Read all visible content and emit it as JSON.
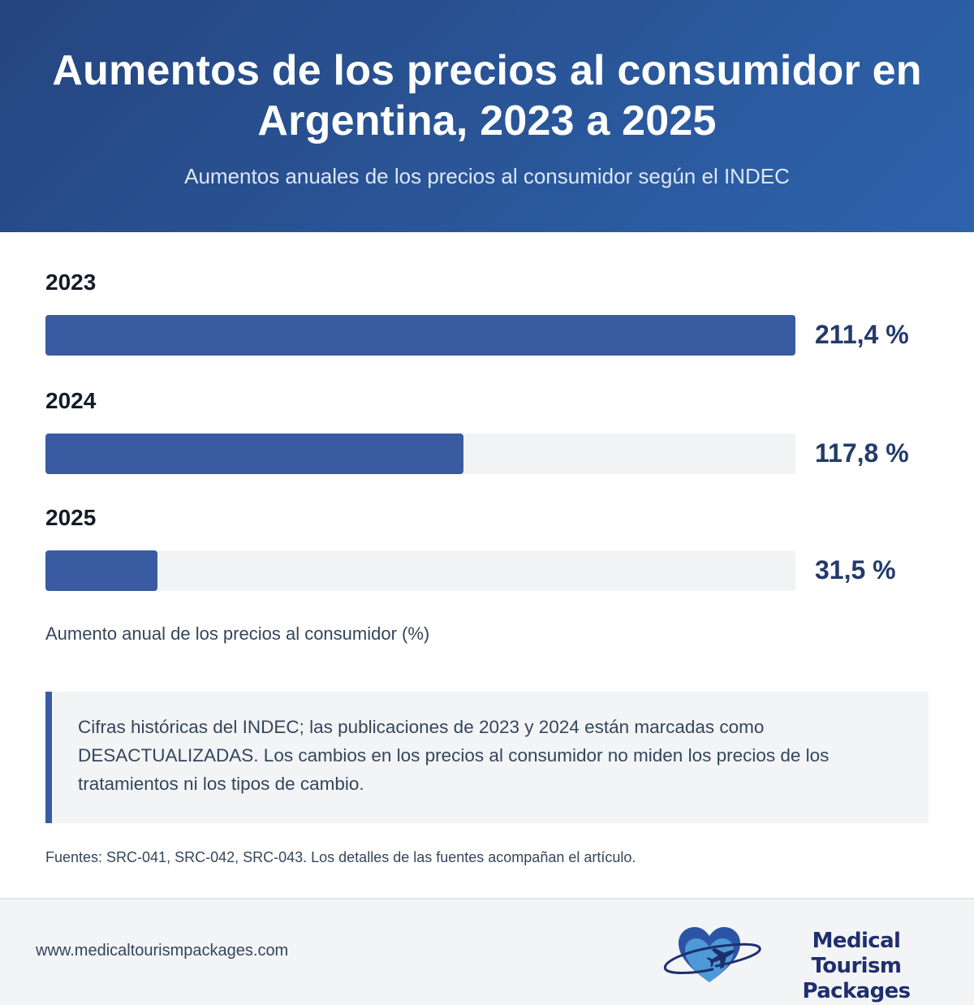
{
  "header": {
    "title": "Aumentos de los precios al consumidor en Argentina, 2023 a 2025",
    "subtitle": "Aumentos anuales de los precios al consumidor según el INDEC"
  },
  "chart_data": {
    "type": "bar",
    "orientation": "horizontal",
    "title": "Aumentos de los precios al consumidor en Argentina, 2023 a 2025",
    "subtitle": "Aumentos anuales de los precios al consumidor según el INDEC",
    "categories": [
      "2023",
      "2024",
      "2025"
    ],
    "values": [
      211.4,
      117.8,
      31.5
    ],
    "value_labels": [
      "211,4 %",
      "117,8 %",
      "31,5 %"
    ],
    "xlabel": "Aumento anual de los precios al consumidor (%)",
    "ylabel": "",
    "xlim": [
      0,
      211.4
    ],
    "grid": false,
    "bar_color": "#3a5ba2",
    "track_color": "#f2f3f5"
  },
  "note": {
    "text": "Cifras históricas del INDEC; las publicaciones de 2023 y 2024 están marcadas como DESACTUALIZADAS. Los cambios en los precios al consumidor no miden los precios de los tratamientos ni los tipos de cambio."
  },
  "sources": "Fuentes: SRC-041, SRC-042, SRC-043. Los detalles de las fuentes acompañan el artículo.",
  "footer": {
    "url": "www.medicaltourismpackages.com",
    "brand_line1": "Medical Tourism",
    "brand_line2": "Packages",
    "logo_icon": "heart-airplane-icon"
  },
  "colors": {
    "header_start": "#25457f",
    "header_end": "#2d63ac",
    "accent": "#3a5ba2",
    "value_text": "#233a6b",
    "brand_text": "#1f2f6e"
  }
}
